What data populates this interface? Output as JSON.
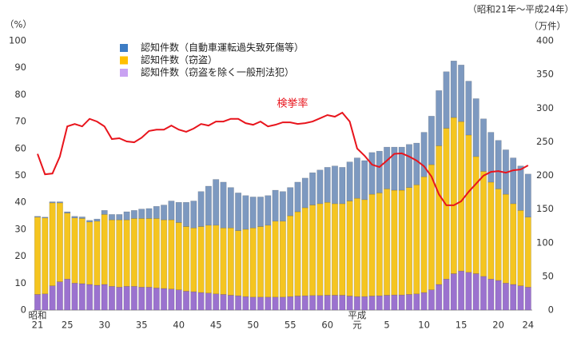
{
  "chart_data": {
    "type": "bar",
    "stacked": true,
    "period_note": "（昭和21年～平成24年）",
    "y_unit": "（%）",
    "y2_unit": "（万件）",
    "categories": [
      "21",
      null,
      null,
      null,
      "25",
      null,
      null,
      null,
      null,
      "30",
      null,
      null,
      null,
      null,
      "35",
      null,
      null,
      null,
      null,
      "40",
      null,
      null,
      null,
      null,
      "45",
      null,
      null,
      null,
      null,
      "50",
      null,
      null,
      null,
      null,
      "55",
      null,
      null,
      null,
      null,
      "60",
      null,
      null,
      null,
      "元",
      null,
      null,
      null,
      "5",
      null,
      null,
      null,
      null,
      "10",
      null,
      null,
      null,
      null,
      "15",
      null,
      null,
      null,
      null,
      "20",
      null,
      null,
      null,
      "24"
    ],
    "era_labels": [
      {
        "index": 0,
        "label": "昭和"
      },
      {
        "index": 43,
        "label": "平成"
      }
    ],
    "ylim": [
      0,
      100
    ],
    "yticks": [
      0,
      10,
      20,
      30,
      40,
      50,
      60,
      70,
      80,
      90,
      100
    ],
    "y2lim": [
      0,
      400
    ],
    "y2ticks": [
      0,
      50,
      100,
      150,
      200,
      250,
      300,
      350,
      400
    ],
    "legend": "top-left",
    "series": [
      {
        "name": "認知件数（窃盗を除く一般刑法犯）",
        "type": "bar",
        "axis": "y2",
        "color": "#9b72cf",
        "values": [
          23.2,
          24,
          36,
          42,
          46,
          40,
          39.2,
          38,
          36.8,
          38,
          35.2,
          34,
          35.2,
          35.2,
          34,
          34,
          32.8,
          32,
          31.2,
          30,
          28,
          27.2,
          26,
          25.2,
          24,
          23.2,
          22,
          21.2,
          20,
          19.2,
          19.2,
          19.2,
          19.2,
          19.2,
          20,
          20.8,
          21.2,
          21.6,
          21.6,
          22,
          22,
          22,
          20.8,
          20,
          20,
          20.8,
          21.2,
          22,
          22.4,
          22.4,
          23.2,
          24,
          26,
          30,
          38,
          46,
          54,
          58,
          56,
          54,
          50,
          46,
          44,
          40,
          38,
          36,
          34
        ]
      },
      {
        "name": "認知件数（窃盗）",
        "type": "bar",
        "axis": "y2",
        "color": "#f5c520",
        "values": [
          114.8,
          112.8,
          123.2,
          117.2,
          98,
          96.8,
          96.8,
          92.8,
          95.2,
          104,
          98.8,
          100,
          98.8,
          100.8,
          102,
          102,
          103.2,
          102,
          102.8,
          100,
          96,
          94.8,
          98,
          100.8,
          102,
          98.8,
          100,
          96.8,
          100,
          102.8,
          104.8,
          106.8,
          112.8,
          112.8,
          120,
          125.2,
          130.8,
          134.4,
          136.4,
          138,
          136,
          136,
          141.2,
          146,
          144,
          151.2,
          152.8,
          158,
          155.6,
          155.6,
          158.8,
          162,
          172,
          186,
          206,
          224,
          232,
          222,
          204,
          174,
          156,
          144,
          136,
          132,
          120,
          112,
          104
        ]
      },
      {
        "name": "認知件数（自動車運転過失致死傷等）",
        "type": "bar",
        "axis": "y2",
        "color": "#7d99c0",
        "values": [
          1.2,
          1.2,
          1.6,
          1.6,
          2,
          2.4,
          2.4,
          2.4,
          3.2,
          6,
          8,
          8,
          12,
          12,
          14,
          14.8,
          18,
          22,
          28,
          30,
          36,
          40,
          52,
          58,
          68,
          68,
          60,
          56,
          50,
          46,
          44,
          44,
          46,
          44,
          42,
          44,
          44,
          48,
          50,
          52,
          56,
          54,
          58,
          60,
          58,
          62,
          62,
          62,
          64,
          64,
          64,
          62,
          66,
          72,
          82,
          84,
          84,
          84,
          80,
          86,
          78,
          74,
          72,
          66,
          68,
          66,
          64
        ]
      },
      {
        "name": "検挙率",
        "type": "line",
        "color": "#e8141c",
        "values": [
          58,
          50.4,
          50.7,
          57,
          68.2,
          69.1,
          68.2,
          71,
          70,
          68.2,
          63.5,
          63.8,
          62.6,
          62.3,
          64,
          66.5,
          67,
          67,
          68.5,
          67,
          66.2,
          67.4,
          69.1,
          68.5,
          70,
          70,
          71,
          71,
          69.4,
          68.8,
          70,
          68.2,
          68.8,
          69.7,
          69.7,
          69.1,
          69.4,
          70,
          71.2,
          72.4,
          71.8,
          73.3,
          70,
          60,
          57.3,
          54,
          53.1,
          55.5,
          58,
          58.2,
          57,
          55.5,
          53.4,
          49.6,
          43,
          38.9,
          38.9,
          40.4,
          43.9,
          46.9,
          49.9,
          51.3,
          51.6,
          51,
          51.9,
          52.2,
          53.7
        ]
      }
    ]
  }
}
